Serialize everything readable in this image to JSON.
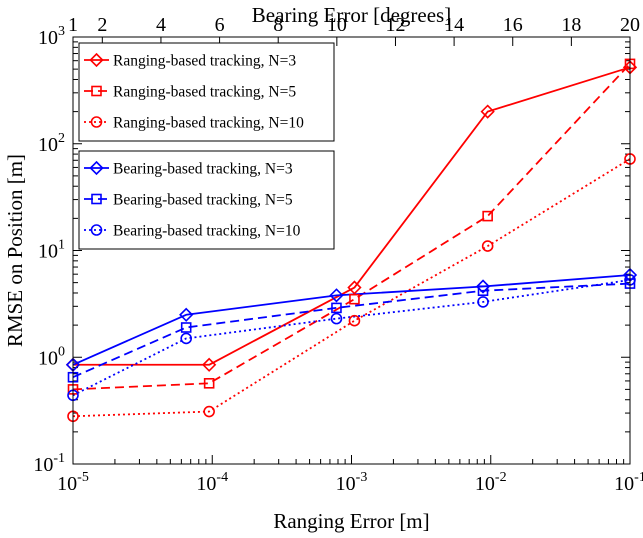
{
  "chart_data": {
    "type": "line",
    "title": "",
    "xlabel": "Ranging Error [m]",
    "ylabel": "RMSE on Position [m]",
    "x2label": "Bearing Error [degrees]",
    "xscale": "log",
    "yscale": "log",
    "xlim": [
      1e-05,
      0.1
    ],
    "ylim": [
      0.1,
      1000
    ],
    "x2lim": [
      1,
      20
    ],
    "grid": false,
    "x_ticks": [
      {
        "value": 1e-05,
        "base": "10",
        "exp": "-5"
      },
      {
        "value": 0.0001,
        "base": "10",
        "exp": "-4"
      },
      {
        "value": 0.001,
        "base": "10",
        "exp": "-3"
      },
      {
        "value": 0.01,
        "base": "10",
        "exp": "-2"
      },
      {
        "value": 0.1,
        "base": "10",
        "exp": "-1"
      }
    ],
    "y_ticks": [
      {
        "value": 0.1,
        "base": "10",
        "exp": "-1"
      },
      {
        "value": 1,
        "base": "10",
        "exp": "0"
      },
      {
        "value": 10,
        "base": "10",
        "exp": "1"
      },
      {
        "value": 100,
        "base": "10",
        "exp": "2"
      },
      {
        "value": 1000,
        "base": "10",
        "exp": "3"
      }
    ],
    "x2_ticks": [
      {
        "value": 1,
        "label": "1"
      },
      {
        "value": 2,
        "label": "2"
      },
      {
        "value": 4,
        "label": "4"
      },
      {
        "value": 6,
        "label": "6"
      },
      {
        "value": 8,
        "label": "8"
      },
      {
        "value": 10,
        "label": "10"
      },
      {
        "value": 12,
        "label": "12"
      },
      {
        "value": 14,
        "label": "14"
      },
      {
        "value": 16,
        "label": "16"
      },
      {
        "value": 18,
        "label": "18"
      },
      {
        "value": 20,
        "label": "20"
      }
    ],
    "legend_groups": [
      {
        "placement": "top-left",
        "series": [
          0,
          1,
          2
        ]
      },
      {
        "placement": "upper-left",
        "series": [
          3,
          4,
          5
        ]
      }
    ],
    "series": [
      {
        "name": "Ranging-based tracking, N=3",
        "color": "#ff0000",
        "dash": "solid",
        "marker": "diamond",
        "x": [
          1e-05,
          9.5e-05,
          0.00105,
          0.0095,
          0.1
        ],
        "y": [
          0.85,
          0.85,
          4.5,
          200,
          520
        ]
      },
      {
        "name": "Ranging-based tracking, N=5",
        "color": "#ff0000",
        "dash": "dashed",
        "marker": "square",
        "x": [
          1e-05,
          9.5e-05,
          0.00105,
          0.0095,
          0.1
        ],
        "y": [
          0.5,
          0.57,
          3.5,
          21,
          560
        ]
      },
      {
        "name": "Ranging-based tracking, N=10",
        "color": "#ff0000",
        "dash": "dotted",
        "marker": "circle",
        "x": [
          1e-05,
          9.5e-05,
          0.00105,
          0.0095,
          0.1
        ],
        "y": [
          0.28,
          0.31,
          2.2,
          11,
          72
        ]
      },
      {
        "name": "Bearing-based tracking, N=3",
        "color": "#0000ff",
        "dash": "solid",
        "marker": "diamond",
        "x": [
          1e-05,
          6.5e-05,
          0.00078,
          0.0088,
          0.1
        ],
        "y": [
          0.85,
          2.5,
          3.8,
          4.6,
          5.9
        ]
      },
      {
        "name": "Bearing-based tracking, N=5",
        "color": "#0000ff",
        "dash": "dashed",
        "marker": "square",
        "x": [
          1e-05,
          6.5e-05,
          0.00078,
          0.0088,
          0.1
        ],
        "y": [
          0.65,
          1.9,
          2.9,
          4.2,
          4.9
        ]
      },
      {
        "name": "Bearing-based tracking, N=10",
        "color": "#0000ff",
        "dash": "dotted",
        "marker": "circle",
        "x": [
          1e-05,
          6.5e-05,
          0.00078,
          0.0088,
          0.1
        ],
        "y": [
          0.44,
          1.5,
          2.3,
          3.3,
          5.3
        ]
      }
    ]
  }
}
